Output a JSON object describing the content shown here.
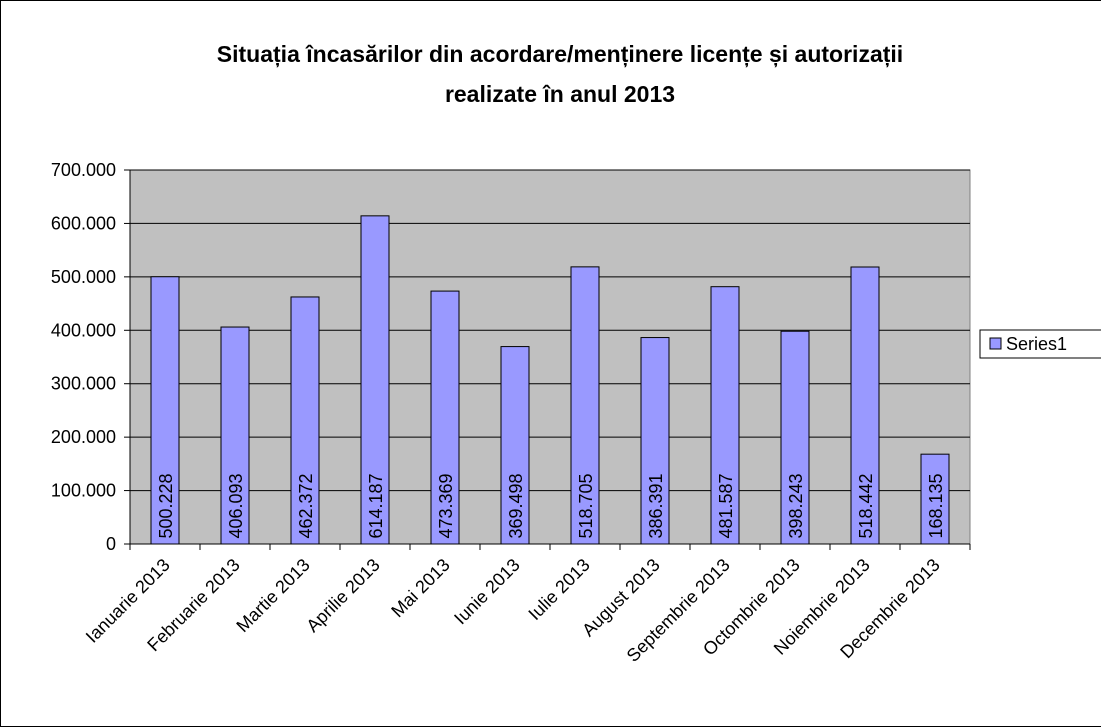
{
  "chart_data": {
    "type": "bar",
    "title": [
      "Situația încasărilor din acordare/menținere licențe și autorizații",
      "realizate în anul 2013"
    ],
    "categories": [
      "Ianuarie 2013",
      "Februarie 2013",
      "Martie 2013",
      "Aprilie 2013",
      "Mai 2013",
      "Iunie 2013",
      "Iulie 2013",
      "August 2013",
      "Septembrie 2013",
      "Octombrie 2013",
      "Noiembrie 2013",
      "Decembrie 2013"
    ],
    "series": [
      {
        "name": "Series1",
        "color": "#9999ff",
        "values": [
          500228,
          406093,
          462372,
          614187,
          473369,
          369498,
          518705,
          386391,
          481587,
          398243,
          518442,
          168135
        ],
        "value_labels": [
          "500.228",
          "406.093",
          "462.372",
          "614.187",
          "473.369",
          "369.498",
          "518.705",
          "386.391",
          "481.587",
          "398.243",
          "518.442",
          "168.135"
        ]
      }
    ],
    "ylim": [
      0,
      700000
    ],
    "yticks": [
      0,
      {
        "value": 100000,
        "label": "100.000"
      },
      {
        "value": 200000,
        "label": "200.000"
      },
      {
        "value": 300000,
        "label": "300.000"
      },
      {
        "value": 400000,
        "label": "400.000"
      },
      {
        "value": 500000,
        "label": "500.000"
      },
      {
        "value": 600000,
        "label": "600.000"
      },
      {
        "value": 700000,
        "label": "700.000"
      }
    ],
    "grid": true,
    "legend": "right",
    "plot_background": "#c0c0c0"
  }
}
